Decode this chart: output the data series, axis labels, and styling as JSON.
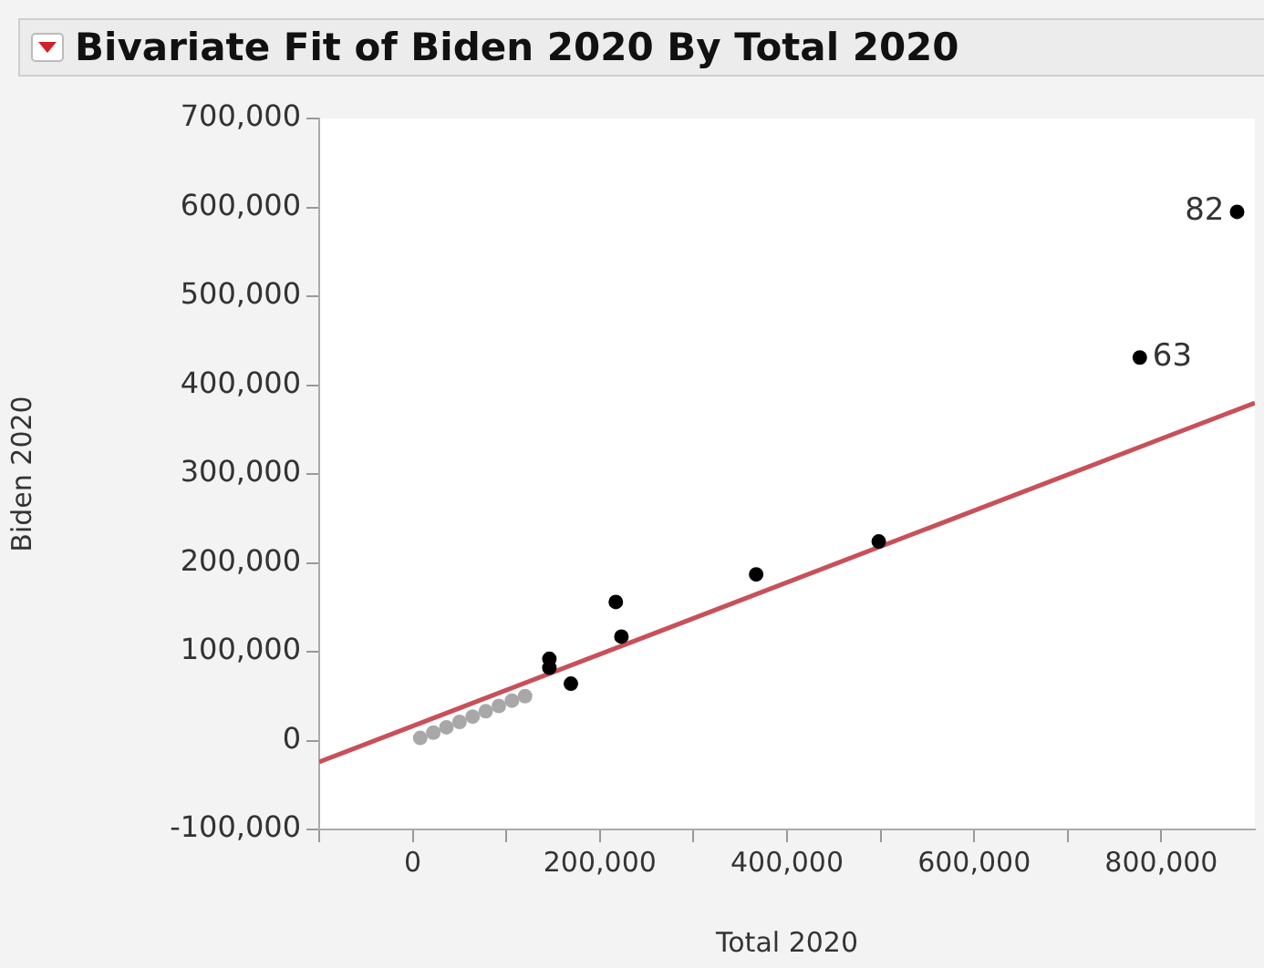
{
  "chart_data": {
    "type": "scatter",
    "title": "Bivariate Fit of Biden 2020 By Total 2020",
    "xlabel": "Total 2020",
    "ylabel": "Biden 2020",
    "xlim": [
      -100000,
      900000
    ],
    "xticks": [
      {
        "value": -100000,
        "label": null
      },
      {
        "value": 0,
        "label": "0"
      },
      {
        "value": 100000,
        "label": null
      },
      {
        "value": 200000,
        "label": "200,000"
      },
      {
        "value": 300000,
        "label": null
      },
      {
        "value": 400000,
        "label": "400,000"
      },
      {
        "value": 500000,
        "label": null
      },
      {
        "value": 600000,
        "label": "600,000"
      },
      {
        "value": 700000,
        "label": null
      },
      {
        "value": 800000,
        "label": "800,000"
      }
    ],
    "ylim": [
      -100000,
      700000
    ],
    "yticks": [
      {
        "value": -100000,
        "label": "-100,000"
      },
      {
        "value": 0,
        "label": "0"
      },
      {
        "value": 100000,
        "label": "100,000"
      },
      {
        "value": 200000,
        "label": "200,000"
      },
      {
        "value": 300000,
        "label": "300,000"
      },
      {
        "value": 400000,
        "label": "400,000"
      },
      {
        "value": 500000,
        "label": "500,000"
      },
      {
        "value": 600000,
        "label": "600,000"
      },
      {
        "value": 700000,
        "label": "700,000"
      }
    ],
    "grid": false,
    "legend": false,
    "series": [
      {
        "marker": "circle",
        "color": "#a8a8a8",
        "x": [
          8000,
          22000,
          36000,
          50000,
          64000,
          78000,
          92000,
          106000,
          120000
        ],
        "values": [
          3000,
          9000,
          15000,
          21000,
          27000,
          33000,
          39000,
          45000,
          50000
        ]
      },
      {
        "marker": "circle",
        "color": "#000000",
        "x": [
          146000,
          146000,
          169000,
          217000,
          223000,
          367000,
          498000,
          777000,
          881000
        ],
        "values": [
          92000,
          82000,
          64000,
          156000,
          117000,
          187000,
          224000,
          431000,
          595000
        ]
      },
      {
        "type": "line",
        "marker": "none",
        "color": "#c8505a",
        "line_style": "solid",
        "x": [
          -100000,
          900000
        ],
        "values": [
          -24000,
          380000
        ]
      }
    ],
    "annotations": [
      {
        "text": "82",
        "x": 881000,
        "y": 595000
      },
      {
        "text": "63",
        "x": 777000,
        "y": 431000
      }
    ]
  }
}
